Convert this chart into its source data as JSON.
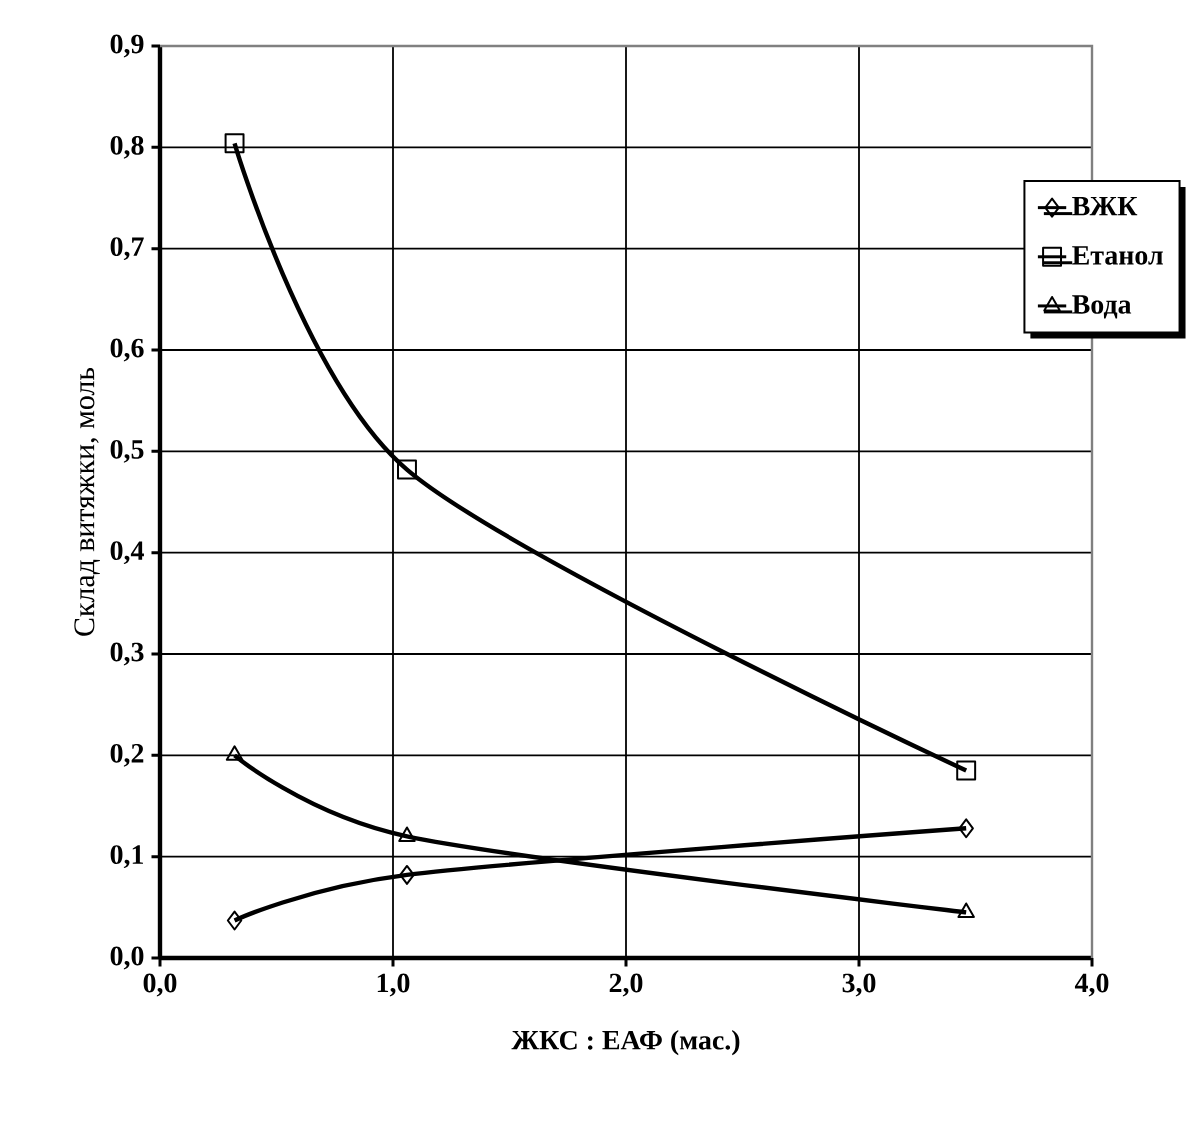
{
  "chart_data": {
    "type": "line",
    "xlabel": "ЖКС : ЕАФ (мас.)",
    "ylabel": "Склад витяжки, моль",
    "xlim": [
      0,
      4
    ],
    "xticks": [
      {
        "value": 0,
        "label": "0,0"
      },
      {
        "value": 1,
        "label": "1,0"
      },
      {
        "value": 2,
        "label": "2,0"
      },
      {
        "value": 3,
        "label": "3,0"
      },
      {
        "value": 4,
        "label": "4,0"
      }
    ],
    "ylim": [
      0,
      0.9
    ],
    "yticks": [
      {
        "value": 0,
        "label": "0,0"
      },
      {
        "value": 0.1,
        "label": "0,1"
      },
      {
        "value": 0.2,
        "label": "0,2"
      },
      {
        "value": 0.3,
        "label": "0,3"
      },
      {
        "value": 0.4,
        "label": "0,4"
      },
      {
        "value": 0.5,
        "label": "0,5"
      },
      {
        "value": 0.6,
        "label": "0,6"
      },
      {
        "value": 0.7,
        "label": "0,7"
      },
      {
        "value": 0.8,
        "label": "0,8"
      },
      {
        "value": 0.9,
        "label": "0,9"
      }
    ],
    "grid": true,
    "legend": "top right",
    "line_style": "solid",
    "series": [
      {
        "name": "ВЖК",
        "color": "#000000",
        "marker": "diamond",
        "x": [
          0.32,
          1.06,
          3.46
        ],
        "values": [
          0.037,
          0.082,
          0.128
        ]
      },
      {
        "name": "Етанол",
        "color": "#000000",
        "marker": "square",
        "x": [
          0.32,
          1.06,
          3.46
        ],
        "values": [
          0.804,
          0.482,
          0.185
        ]
      },
      {
        "name": "Вода",
        "color": "#000000",
        "marker": "triangle",
        "x": [
          0.32,
          1.06,
          3.46
        ],
        "values": [
          0.2,
          0.12,
          0.045
        ]
      }
    ]
  }
}
